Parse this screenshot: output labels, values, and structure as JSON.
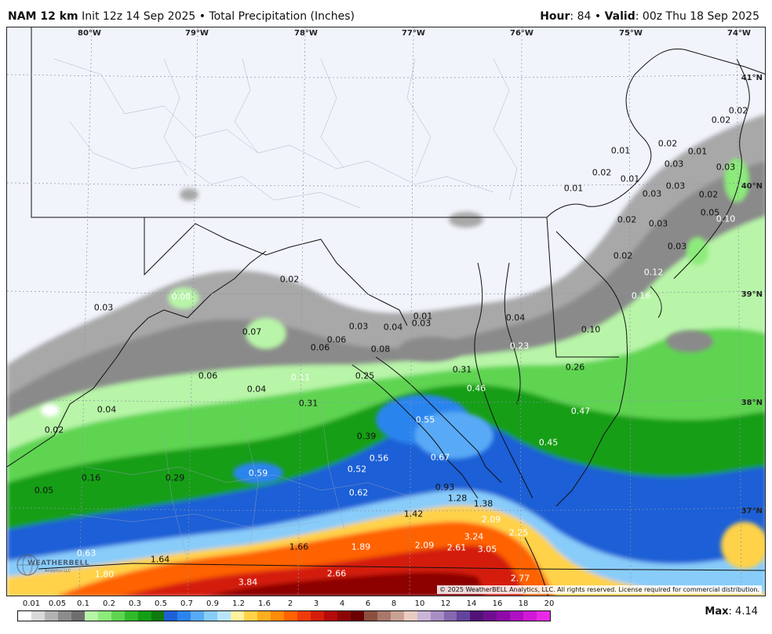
{
  "header": {
    "model": "NAM 12 km",
    "init": "Init 12z 14 Sep 2025",
    "separator": "•",
    "product": "Total Precipitation (Inches)",
    "hour_label": "Hour",
    "hour_value": "84",
    "valid_label": "Valid",
    "valid_value": "00z Thu 18 Sep 2025"
  },
  "map": {
    "lon_labels": [
      "80°W",
      "79°W",
      "78°W",
      "77°W",
      "76°W",
      "75°W",
      "74°W"
    ],
    "lat_labels": [
      "41°N",
      "40°N",
      "39°N",
      "38°N",
      "37°N"
    ],
    "point_values": [
      {
        "v": "0.02",
        "c": "d"
      },
      {
        "v": "0.02",
        "c": "d"
      },
      {
        "v": "0.01",
        "c": "d"
      },
      {
        "v": "0.02",
        "c": "d"
      },
      {
        "v": "0.01",
        "c": "d"
      },
      {
        "v": "0.03",
        "c": "d"
      },
      {
        "v": "0.03",
        "c": "d"
      },
      {
        "v": "0.01",
        "c": "d"
      },
      {
        "v": "0.02",
        "c": "d"
      },
      {
        "v": "0.03",
        "c": "d"
      },
      {
        "v": "0.03",
        "c": "d"
      },
      {
        "v": "0.01",
        "c": "d"
      },
      {
        "v": "0.02",
        "c": "d"
      },
      {
        "v": "0.05",
        "c": "d"
      },
      {
        "v": "0.03",
        "c": "d"
      },
      {
        "v": "0.10",
        "c": "w"
      },
      {
        "v": "0.02",
        "c": "d"
      },
      {
        "v": "0.03",
        "c": "d"
      },
      {
        "v": "0.02",
        "c": "d"
      },
      {
        "v": "0.12",
        "c": "w"
      },
      {
        "v": "0.16",
        "c": "w"
      },
      {
        "v": "0.10",
        "c": "d"
      },
      {
        "v": "0.02",
        "c": "d"
      },
      {
        "v": "0.08",
        "c": "w"
      },
      {
        "v": "0.03",
        "c": "d"
      },
      {
        "v": "0.07",
        "c": "d"
      },
      {
        "v": "0.06",
        "c": "d"
      },
      {
        "v": "0.06",
        "c": "d"
      },
      {
        "v": "0.03",
        "c": "d"
      },
      {
        "v": "0.04",
        "c": "d"
      },
      {
        "v": "0.01",
        "c": "d"
      },
      {
        "v": "0.03",
        "c": "d"
      },
      {
        "v": "0.04",
        "c": "d"
      },
      {
        "v": "0.08",
        "c": "d"
      },
      {
        "v": "0.23",
        "c": "w"
      },
      {
        "v": "0.26",
        "c": "d"
      },
      {
        "v": "0.31",
        "c": "d"
      },
      {
        "v": "0.06",
        "c": "d"
      },
      {
        "v": "0.04",
        "c": "d"
      },
      {
        "v": "0.11",
        "c": "w"
      },
      {
        "v": "0.25",
        "c": "d"
      },
      {
        "v": "0.46",
        "c": "w"
      },
      {
        "v": "0.47",
        "c": "w"
      },
      {
        "v": "0.04",
        "c": "d"
      },
      {
        "v": "0.31",
        "c": "d"
      },
      {
        "v": "0.55",
        "c": "w"
      },
      {
        "v": "0.02",
        "c": "d"
      },
      {
        "v": "0.39",
        "c": "d"
      },
      {
        "v": "0.56",
        "c": "w"
      },
      {
        "v": "0.67",
        "c": "w"
      },
      {
        "v": "0.45",
        "c": "w"
      },
      {
        "v": "0.16",
        "c": "d"
      },
      {
        "v": "0.29",
        "c": "d"
      },
      {
        "v": "0.59",
        "c": "w"
      },
      {
        "v": "0.52",
        "c": "w"
      },
      {
        "v": "0.05",
        "c": "d"
      },
      {
        "v": "0.62",
        "c": "w"
      },
      {
        "v": "0.93",
        "c": "d"
      },
      {
        "v": "1.28",
        "c": "d"
      },
      {
        "v": "1.38",
        "c": "d"
      },
      {
        "v": "1.42",
        "c": "d"
      },
      {
        "v": "2.09",
        "c": "w"
      },
      {
        "v": "2.25",
        "c": "w"
      },
      {
        "v": "3.24",
        "c": "w"
      },
      {
        "v": "1.66",
        "c": "d"
      },
      {
        "v": "1.89",
        "c": "w"
      },
      {
        "v": "2.09",
        "c": "w"
      },
      {
        "v": "2.61",
        "c": "w"
      },
      {
        "v": "3.05",
        "c": "w"
      },
      {
        "v": "0.63",
        "c": "w"
      },
      {
        "v": "1.64",
        "c": "d"
      },
      {
        "v": "1.80",
        "c": "w"
      },
      {
        "v": "2.66",
        "c": "w"
      },
      {
        "v": "3.84",
        "c": "w"
      },
      {
        "v": "2.77",
        "c": "w"
      }
    ],
    "copyright": "© 2025 WeatherBELL Analytics, LLC. All rights reserved. License required for commercial distribution.",
    "logo_text": "WEATHERBELL",
    "logo_sub": "Analytics LLC"
  },
  "legend": {
    "labels": [
      "0.01",
      "0.05",
      "0.1",
      "0.2",
      "0.3",
      "0.5",
      "0.7",
      "0.9",
      "1.2",
      "1.6",
      "2",
      "3",
      "4",
      "6",
      "8",
      "10",
      "12",
      "14",
      "16",
      "18",
      "20"
    ],
    "colors": [
      "#ffffff",
      "#d9d9d9",
      "#b3b3b3",
      "#8c8c8c",
      "#6e6e6e",
      "#b8f5a8",
      "#8ceb7a",
      "#5ed451",
      "#32b82a",
      "#139e13",
      "#0d7a0d",
      "#1f5fd6",
      "#2b84ee",
      "#58aaf6",
      "#88ccfa",
      "#b7e6fc",
      "#fff3a0",
      "#ffd24a",
      "#ffae1f",
      "#ff8a0a",
      "#ff6200",
      "#f03a0a",
      "#d41e0a",
      "#b40a0a",
      "#8c0505",
      "#6b0000",
      "#8a4f3f",
      "#a8786a",
      "#c9a295",
      "#e8ccc2",
      "#c9b5d6",
      "#a98ec4",
      "#8667b0",
      "#64439b",
      "#52127a",
      "#6e0f8f",
      "#8e0aa8",
      "#b00fc4",
      "#cf19d8",
      "#e62ae6"
    ],
    "max_label": "Max",
    "max_value": "4.14"
  }
}
